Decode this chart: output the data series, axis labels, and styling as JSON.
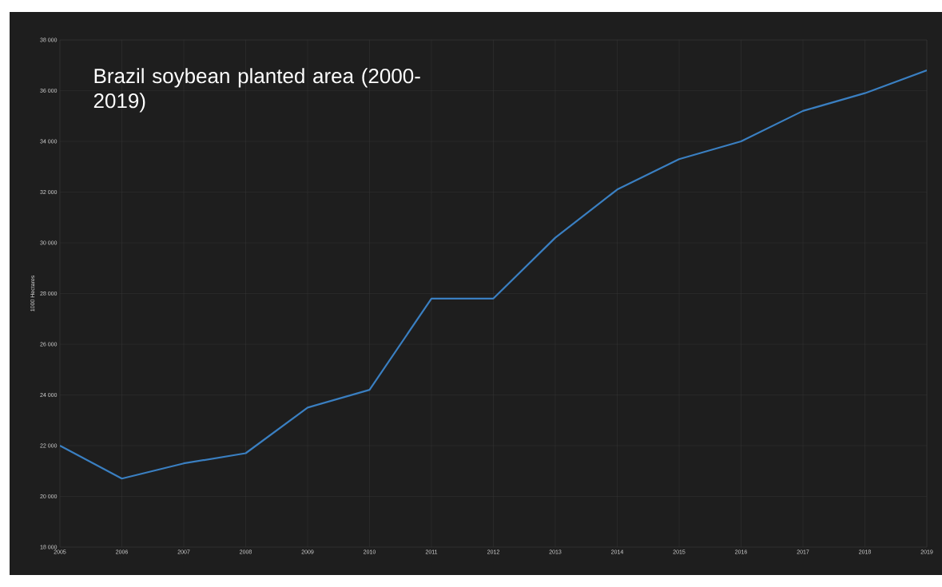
{
  "chart_data": {
    "type": "line",
    "title": "Brazil soybean planted area (2000-2019)",
    "ylabel": "1000 Hectares",
    "x": [
      2005,
      2006,
      2007,
      2008,
      2009,
      2010,
      2011,
      2012,
      2013,
      2014,
      2015,
      2016,
      2017,
      2018,
      2019
    ],
    "series": [
      {
        "color": "#3a7fc1",
        "values": [
          22000,
          20700,
          21300,
          21700,
          23500,
          24200,
          27800,
          27800,
          30200,
          32100,
          33300,
          34000,
          35200,
          35900,
          36800
        ]
      }
    ],
    "xlim": [
      2005,
      2019
    ],
    "ylim": [
      18000,
      38000
    ],
    "xticks": [
      2005,
      2006,
      2007,
      2008,
      2009,
      2010,
      2011,
      2012,
      2013,
      2014,
      2015,
      2016,
      2017,
      2018,
      2019
    ],
    "yticks": [
      {
        "value": 18000,
        "label": "18 000"
      },
      {
        "value": 20000,
        "label": "20 000"
      },
      {
        "value": 22000,
        "label": "22 000"
      },
      {
        "value": 24000,
        "label": "24 000"
      },
      {
        "value": 26000,
        "label": "26 000"
      },
      {
        "value": 28000,
        "label": "28 000"
      },
      {
        "value": 30000,
        "label": "30 000"
      },
      {
        "value": 32000,
        "label": "32 000"
      },
      {
        "value": 34000,
        "label": "34 000"
      },
      {
        "value": 36000,
        "label": "36 000"
      },
      {
        "value": 38000,
        "label": "38 000"
      }
    ],
    "grid": true,
    "marker": "none",
    "line_style": "solid"
  }
}
